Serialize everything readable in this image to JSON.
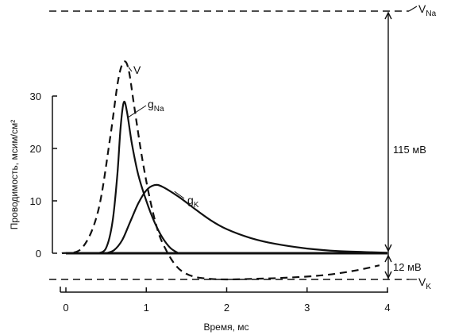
{
  "chart_data": {
    "type": "line",
    "xlabel": "Время, мс",
    "ylabel": "Проводимость, мсим/см²",
    "xlim": [
      0,
      4
    ],
    "ylim": [
      0,
      30
    ],
    "x_ticks": [
      0,
      1,
      2,
      3,
      4
    ],
    "y_ticks": [
      0,
      10,
      20,
      30
    ],
    "grid": false,
    "series": [
      {
        "name": "V",
        "style": "dashed",
        "x": [
          -0.05,
          0.2,
          0.4,
          0.55,
          0.65,
          0.72,
          0.78,
          0.85,
          0.95,
          1.05,
          1.15,
          1.25,
          1.35,
          1.45,
          1.6,
          1.8,
          2.0,
          2.3,
          2.7,
          3.2,
          3.6,
          3.9
        ],
        "y": [
          0,
          1.0,
          8.0,
          22.0,
          33.0,
          36.5,
          35.0,
          28.0,
          18.0,
          10.0,
          4.0,
          0.5,
          -2.0,
          -3.5,
          -4.5,
          -4.9,
          -5.0,
          -4.9,
          -4.7,
          -4.2,
          -3.3,
          -2.3
        ]
      },
      {
        "name": "gNa",
        "label_main": "g",
        "label_sub": "Na",
        "style": "solid",
        "x": [
          0.4,
          0.5,
          0.58,
          0.64,
          0.68,
          0.72,
          0.76,
          0.82,
          0.9,
          1.0,
          1.1,
          1.2,
          1.3,
          1.4
        ],
        "y": [
          0,
          1.0,
          6.0,
          15.0,
          24.0,
          28.8,
          27.0,
          21.0,
          15.0,
          10.0,
          6.0,
          3.0,
          1.0,
          0
        ]
      },
      {
        "name": "gK",
        "label_main": "g",
        "label_sub": "K",
        "style": "solid",
        "x": [
          0.5,
          0.6,
          0.7,
          0.8,
          0.9,
          1.0,
          1.1,
          1.2,
          1.4,
          1.6,
          1.8,
          2.0,
          2.3,
          2.6,
          3.0,
          3.4,
          3.8,
          4.0
        ],
        "y": [
          0,
          0.6,
          2.5,
          6.0,
          9.5,
          12.0,
          13.0,
          12.7,
          10.8,
          8.5,
          6.3,
          4.6,
          2.9,
          1.8,
          0.9,
          0.4,
          0.2,
          0.1
        ]
      }
    ],
    "reference_lines": [
      {
        "label_main": "V",
        "label_sub": "Na",
        "y": 46
      },
      {
        "label_main": "V",
        "label_sub": "K",
        "y": -5.0
      }
    ],
    "annotations": [
      {
        "text": "115 мВ",
        "from_y": 46,
        "to_y": 0
      },
      {
        "text": "12 мВ",
        "from_y": 0,
        "to_y": -5.0
      }
    ]
  }
}
